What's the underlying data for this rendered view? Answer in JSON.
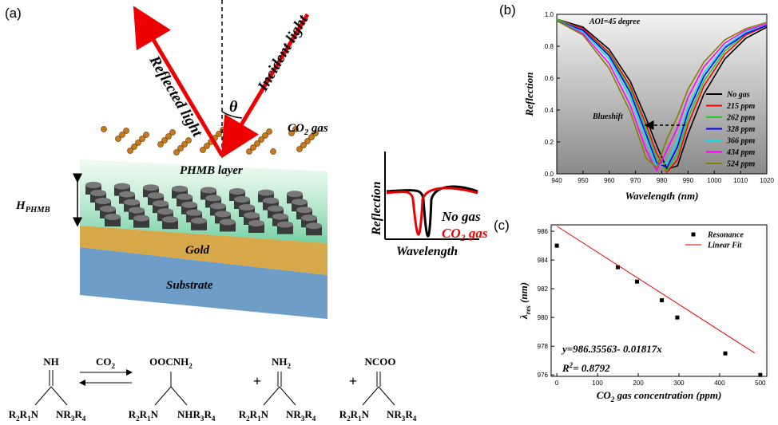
{
  "panel_a": {
    "label": "(a)",
    "reflected": "Reflected light",
    "incident": "Incident light",
    "theta": "θ",
    "gas": [
      "CO",
      "2",
      " gas"
    ],
    "layer": "PHMB layer",
    "thickness": [
      "H",
      "PHMB"
    ],
    "gold": "Gold",
    "substrate": "Substrate",
    "inset": {
      "ylabel": "Reflection",
      "xlabel": "Wavelength",
      "no_gas": "No gas",
      "co2": [
        "CO",
        "2",
        " gas"
      ]
    }
  },
  "reaction": {
    "reagent": [
      "CO",
      "2"
    ],
    "plus": [
      "+",
      "+"
    ],
    "reactant": {
      "top": "NH",
      "left": [
        "R",
        "2",
        "R",
        "1",
        "N"
      ],
      "right": [
        "NR",
        "3",
        "R",
        "4"
      ]
    },
    "product1": {
      "top": [
        "OOCNH",
        "2"
      ],
      "left": [
        "R",
        "2",
        "R",
        "1",
        "N"
      ],
      "right": [
        "NHR",
        "3",
        "R",
        "4"
      ]
    },
    "product2": {
      "top": [
        "NH",
        "2"
      ],
      "left": [
        "R",
        "2",
        "R",
        "1",
        "N"
      ],
      "right": [
        "NR",
        "3",
        "R",
        "4"
      ]
    },
    "product3": {
      "top": "NCOO",
      "left": [
        "R",
        "2",
        "R",
        "1",
        "N"
      ],
      "right": [
        "NR",
        "3",
        "R",
        "4"
      ]
    }
  },
  "chart_data": [
    {
      "type": "line",
      "panel_label": "(b)",
      "annotation": "AOI=45 degree",
      "arrow_label": "Blueshift",
      "xlabel": "Wavelength (nm)",
      "ylabel": "Reflection",
      "x": [
        940,
        950,
        960,
        968,
        974,
        978,
        982,
        986,
        990,
        996,
        1004,
        1012,
        1020
      ],
      "xlim": [
        940,
        1020
      ],
      "xticks": [
        940,
        950,
        960,
        970,
        980,
        990,
        1000,
        1010,
        1020
      ],
      "ylim": [
        0,
        1.0
      ],
      "yticks": [
        {
          "value": 0,
          "label": "0.0"
        },
        0.2,
        0.4,
        0.6,
        0.8,
        {
          "value": 1.0,
          "label": "1.0"
        }
      ],
      "legend": "right",
      "series": [
        {
          "name": "No gas",
          "color": "#000000",
          "values": [
            0.97,
            0.92,
            0.78,
            0.58,
            0.35,
            0.18,
            0.03,
            0.05,
            0.25,
            0.5,
            0.72,
            0.85,
            0.92
          ]
        },
        {
          "name": "215 ppm",
          "color": "#ff0000",
          "values": [
            0.97,
            0.91,
            0.76,
            0.55,
            0.31,
            0.13,
            0.01,
            0.09,
            0.31,
            0.55,
            0.75,
            0.87,
            0.93
          ]
        },
        {
          "name": "262 ppm",
          "color": "#22cc22",
          "values": [
            0.97,
            0.9,
            0.75,
            0.53,
            0.28,
            0.1,
            0.02,
            0.13,
            0.35,
            0.58,
            0.77,
            0.88,
            0.93
          ]
        },
        {
          "name": "328 ppm",
          "color": "#0000ff",
          "values": [
            0.96,
            0.9,
            0.74,
            0.51,
            0.25,
            0.07,
            0.04,
            0.17,
            0.39,
            0.61,
            0.79,
            0.88,
            0.93
          ]
        },
        {
          "name": "366 ppm",
          "color": "#00e5ee",
          "values": [
            0.96,
            0.89,
            0.72,
            0.48,
            0.22,
            0.05,
            0.07,
            0.21,
            0.42,
            0.63,
            0.8,
            0.89,
            0.94
          ]
        },
        {
          "name": "434 ppm",
          "color": "#ff00ff",
          "values": [
            0.96,
            0.88,
            0.69,
            0.43,
            0.15,
            0.02,
            0.15,
            0.29,
            0.48,
            0.67,
            0.82,
            0.9,
            0.94
          ]
        },
        {
          "name": "524 ppm",
          "color": "#808000",
          "values": [
            0.96,
            0.87,
            0.66,
            0.39,
            0.1,
            0.04,
            0.22,
            0.36,
            0.53,
            0.7,
            0.84,
            0.91,
            0.95
          ]
        }
      ]
    },
    {
      "type": "scatter",
      "panel_label": "(c)",
      "equation": "y=986.35563- 0.01817x",
      "r2": [
        "R",
        "2",
        "= 0.8792"
      ],
      "xlabel": [
        "CO",
        "2",
        " gas concentration (ppm)"
      ],
      "ylabel": [
        "λ",
        "res",
        " (nm)"
      ],
      "xlim": [
        -14,
        516
      ],
      "xticks": [
        0,
        100,
        200,
        300,
        400,
        500
      ],
      "ylim": [
        975.9,
        986.45
      ],
      "yticks": [
        976,
        978,
        980,
        982,
        984,
        986
      ],
      "legend": "upper right",
      "series": [
        {
          "name": "Resonance",
          "color": "#000000",
          "x": [
            0,
            150,
            197,
            258,
            296,
            414,
            500
          ],
          "values": [
            985,
            983.5,
            982.5,
            981.2,
            980,
            977.5,
            976
          ]
        },
        {
          "name": "Linear Fit",
          "type": "line",
          "color": "#e00000",
          "x": [
            0,
            486
          ],
          "values": [
            986.36,
            977.53
          ]
        }
      ]
    }
  ]
}
